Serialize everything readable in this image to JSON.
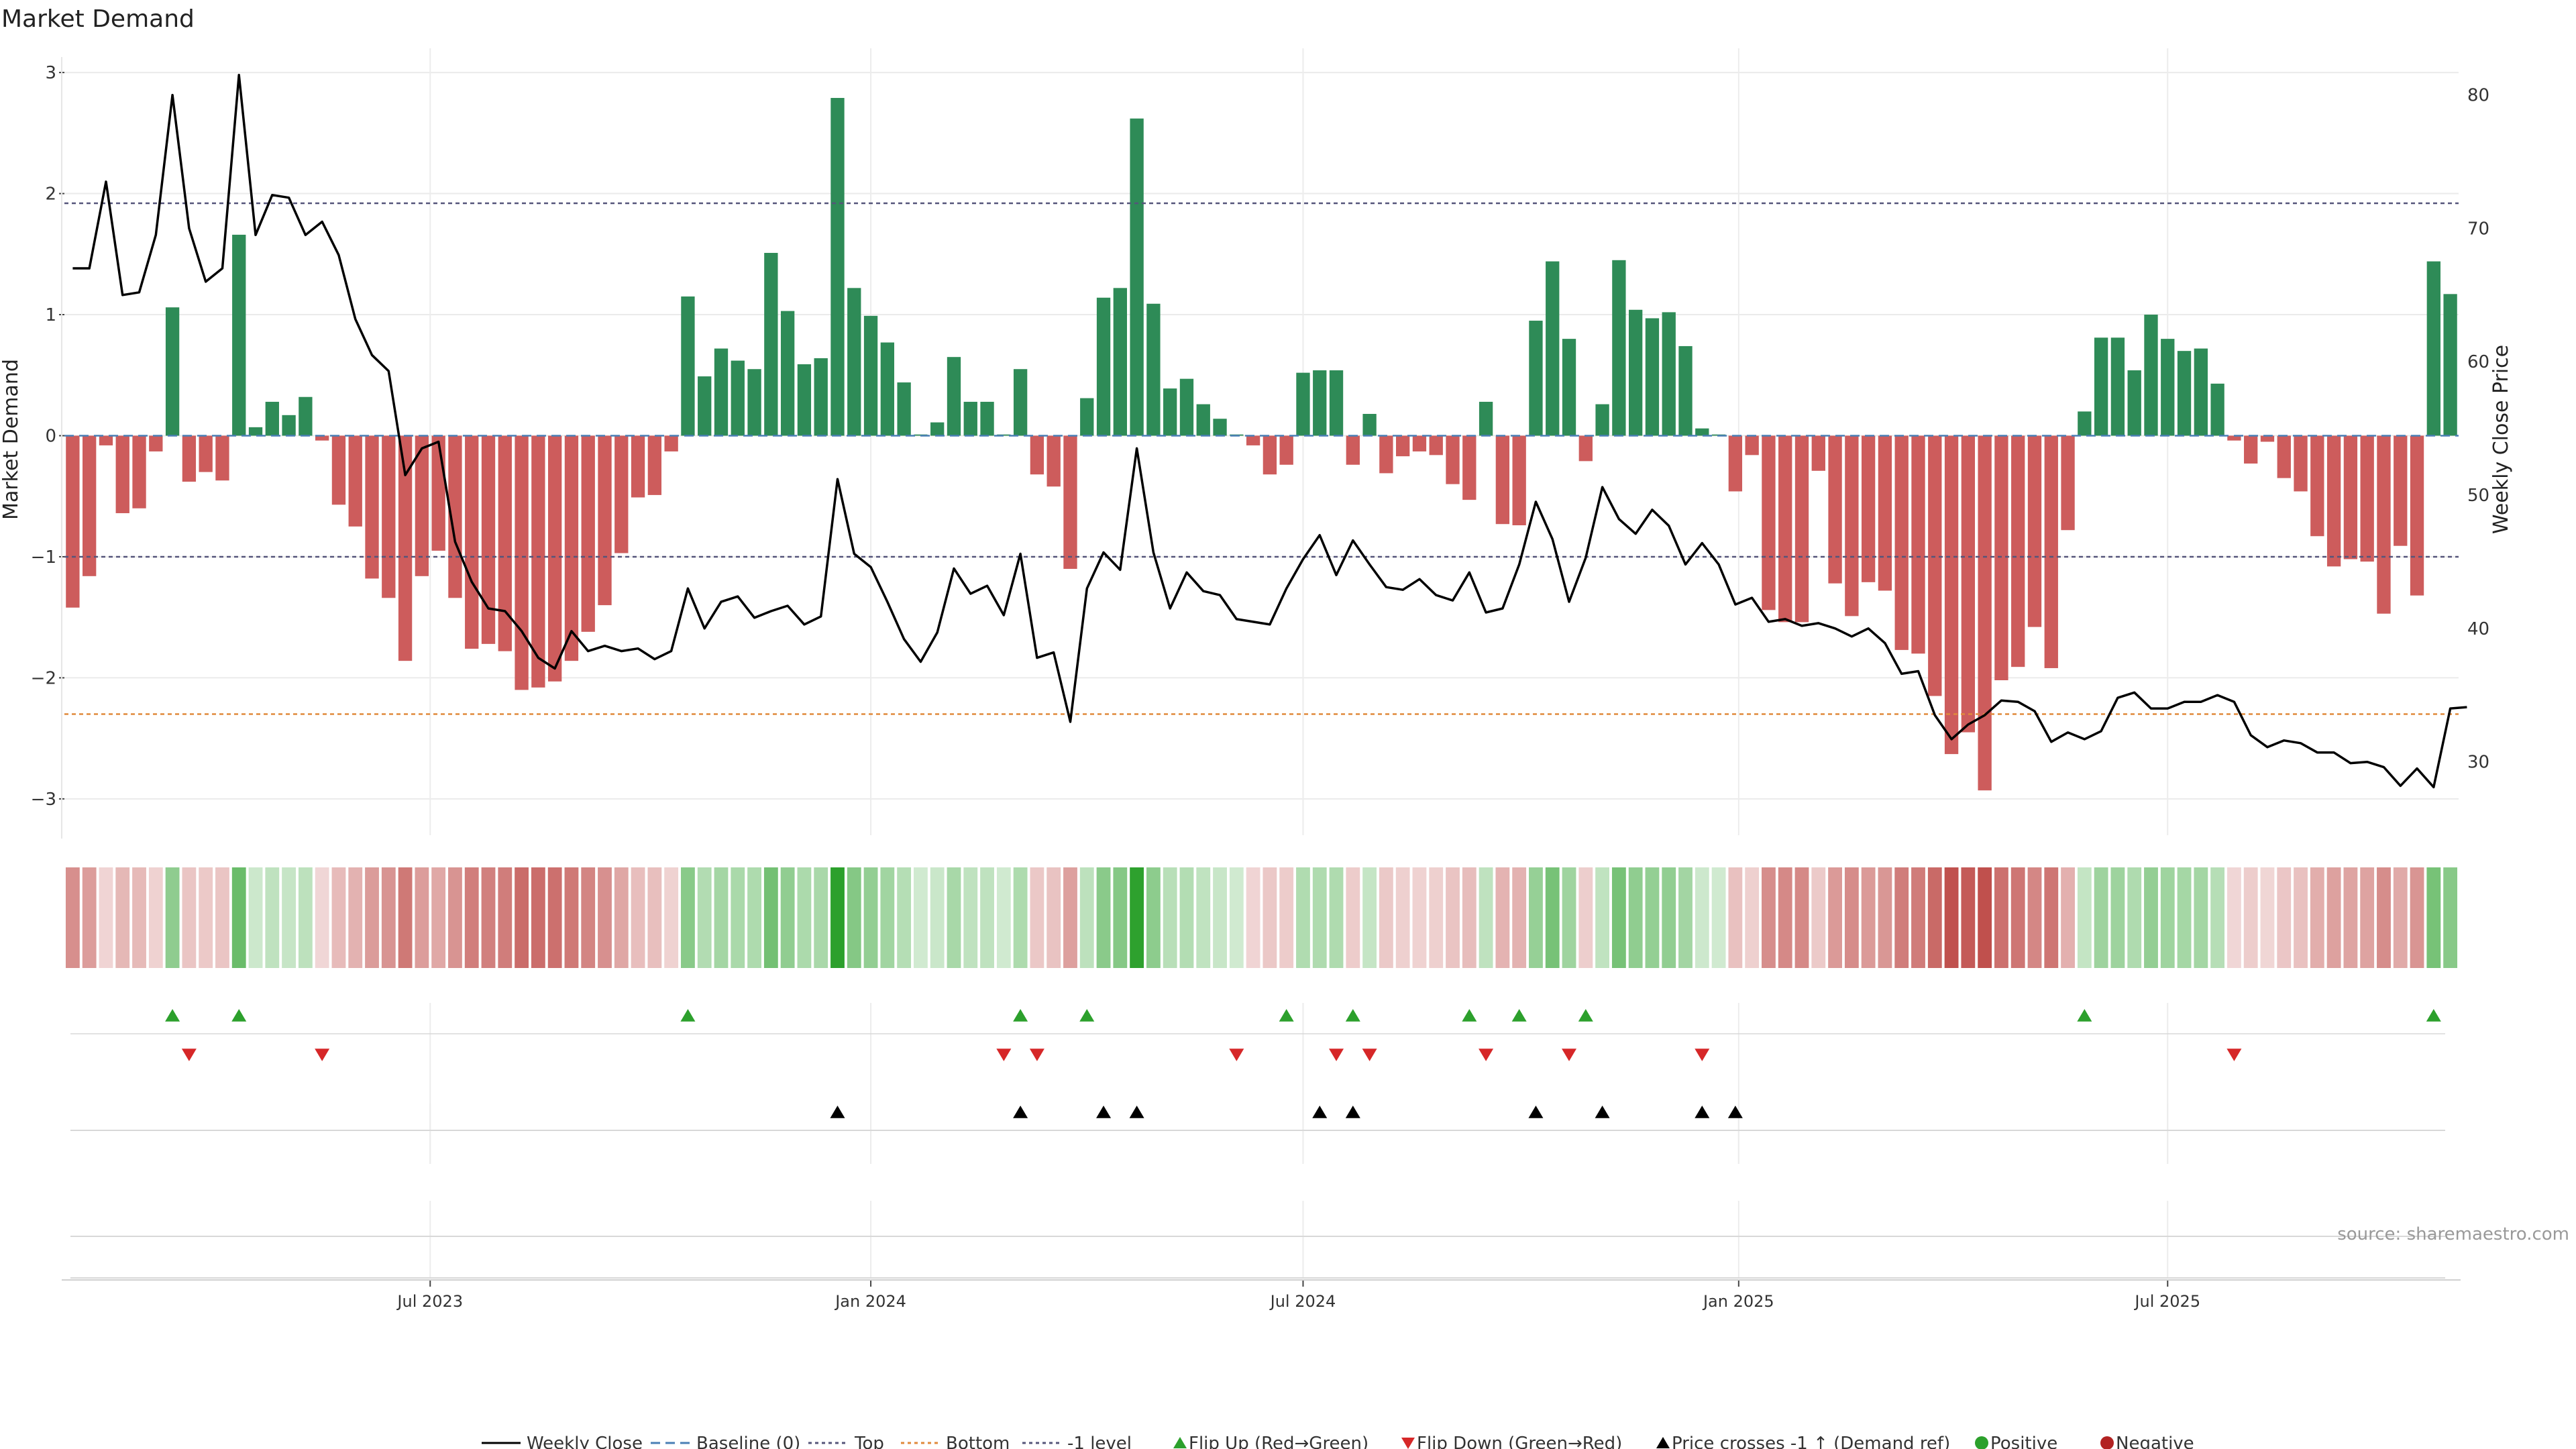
{
  "chart_data": {
    "type": "bar",
    "title": "Market Demand",
    "ylabel": "Market Demand",
    "y2label": "Weekly Close Price",
    "ylim": [
      -3.3,
      3.2
    ],
    "y2lim": [
      24.5,
      83.5
    ],
    "yticks": [
      3,
      2,
      1,
      0,
      -1,
      -2,
      -3
    ],
    "y2ticks": [
      80,
      70,
      60,
      50,
      40,
      30
    ],
    "xticks": [
      "Jul 2023",
      "Jan 2024",
      "Jul 2024",
      "Jan 2025",
      "Jul 2025"
    ],
    "xtick_weeks": [
      22,
      48.5,
      74.5,
      100.7,
      126.5
    ],
    "reference_lines": {
      "top": 1.92,
      "bottom": -2.3,
      "minus_one": -1.0,
      "baseline": 0
    },
    "demand": [
      -1.42,
      -1.16,
      -0.08,
      -0.64,
      -0.6,
      -0.13,
      1.06,
      -0.38,
      -0.3,
      -0.37,
      1.66,
      0.07,
      0.28,
      0.17,
      0.32,
      -0.04,
      -0.57,
      -0.75,
      -1.18,
      -1.34,
      -1.86,
      -1.16,
      -0.95,
      -1.34,
      -1.76,
      -1.72,
      -1.78,
      -2.1,
      -2.08,
      -2.03,
      -1.86,
      -1.62,
      -1.4,
      -0.97,
      -0.51,
      -0.49,
      -0.13,
      1.15,
      0.49,
      0.72,
      0.62,
      0.55,
      1.51,
      1.03,
      0.59,
      0.64,
      2.79,
      1.22,
      0.99,
      0.77,
      0.44,
      0.01,
      0.11,
      0.65,
      0.28,
      0.28,
      0.01,
      0.55,
      -0.32,
      -0.42,
      -1.1,
      0.31,
      1.14,
      1.22,
      2.62,
      1.09,
      0.39,
      0.47,
      0.26,
      0.14,
      0.01,
      -0.08,
      -0.32,
      -0.24,
      0.52,
      0.54,
      0.54,
      -0.24,
      0.18,
      -0.31,
      -0.17,
      -0.13,
      -0.16,
      -0.4,
      -0.53,
      0.28,
      -0.73,
      -0.74,
      0.95,
      1.44,
      0.8,
      -0.21,
      0.26,
      1.45,
      1.04,
      0.97,
      1.02,
      0.74,
      0.06,
      0.01,
      -0.46,
      -0.16,
      -1.44,
      -1.54,
      -1.54,
      -0.29,
      -1.22,
      -1.49,
      -1.21,
      -1.28,
      -1.77,
      -1.8,
      -2.15,
      -2.63,
      -2.45,
      -2.93,
      -2.02,
      -1.91,
      -1.58,
      -1.92,
      -0.78,
      0.2,
      0.81,
      0.81,
      0.54,
      1.0,
      0.8,
      0.7,
      0.72,
      0.43,
      -0.04,
      -0.23,
      -0.05,
      -0.35,
      -0.46,
      -0.83,
      -1.08,
      -1.02,
      -1.04,
      -1.47,
      -0.91,
      -1.32,
      1.44,
      1.17
    ],
    "weekly_close": [
      67,
      67,
      73.5,
      65,
      65.2,
      69.5,
      80,
      70,
      66,
      67,
      81.5,
      69.5,
      72.5,
      72.3,
      69.5,
      70.5,
      68,
      63.2,
      60.5,
      59.3,
      51.5,
      53.5,
      54,
      46.5,
      43.5,
      41.5,
      41.3,
      39.8,
      37.8,
      37,
      39.8,
      38.3,
      38.7,
      38.3,
      38.5,
      37.7,
      38.3,
      43,
      40,
      42,
      42.4,
      40.8,
      41.3,
      41.7,
      40.3,
      40.9,
      51.2,
      45.6,
      44.6,
      42,
      39.2,
      37.5,
      39.7,
      44.5,
      42.6,
      43.2,
      41,
      45.6,
      37.8,
      38.2,
      33,
      43,
      45.7,
      44.4,
      53.5,
      45.7,
      41.5,
      44.2,
      42.8,
      42.5,
      40.7,
      40.5,
      40.3,
      43,
      45.2,
      47,
      44,
      46.6,
      44.8,
      43.1,
      42.9,
      43.7,
      42.5,
      42.1,
      44.2,
      41.2,
      41.5,
      44.8,
      49.5,
      46.7,
      42,
      45.3,
      50.6,
      48.2,
      47.1,
      48.9,
      47.7,
      44.8,
      46.4,
      44.8,
      41.8,
      42.3,
      40.5,
      40.7,
      40.2,
      40.4,
      40,
      39.4,
      40,
      38.9,
      36.6,
      36.8,
      33.5,
      31.7,
      32.8,
      33.5,
      34.6,
      34.5,
      33.8,
      31.5,
      32.2,
      31.7,
      32.3,
      34.8,
      35.2,
      34,
      34,
      34.5,
      34.5,
      35,
      34.5,
      32,
      31.1,
      31.6,
      31.4,
      30.7,
      30.7,
      29.9,
      30,
      29.6,
      28.2,
      29.5,
      28.1,
      34,
      34.1
    ],
    "flip_up_weeks": [
      6,
      10,
      37,
      57,
      61,
      73,
      77,
      84,
      87,
      91,
      121,
      142
    ],
    "flip_down_weeks": [
      7,
      15,
      56,
      58,
      70,
      76,
      78,
      85,
      90,
      98,
      130
    ],
    "price_cross_weeks": [
      46,
      57,
      62,
      64,
      75,
      77,
      88,
      92,
      98,
      100
    ],
    "legend": [
      "Weekly Close",
      "Baseline (0)",
      "Top",
      "Bottom",
      "-1 level",
      "Flip Up (Red→Green)",
      "Flip Down (Green→Red)",
      "Price crosses -1 ↑ (Demand ref)",
      "Positive",
      "Negative"
    ],
    "colors": {
      "positive": "#2e8b57",
      "negative": "#cd5c5c",
      "price": "#000000",
      "flip_up": "#2ca02c",
      "flip_down": "#d62728",
      "bottom_line": "#e08a3c",
      "ref_line": "#55557a",
      "positive_dot": "#2ca02c",
      "negative_dot": "#b22222"
    },
    "source_note": "source: sharemaestro.com"
  }
}
